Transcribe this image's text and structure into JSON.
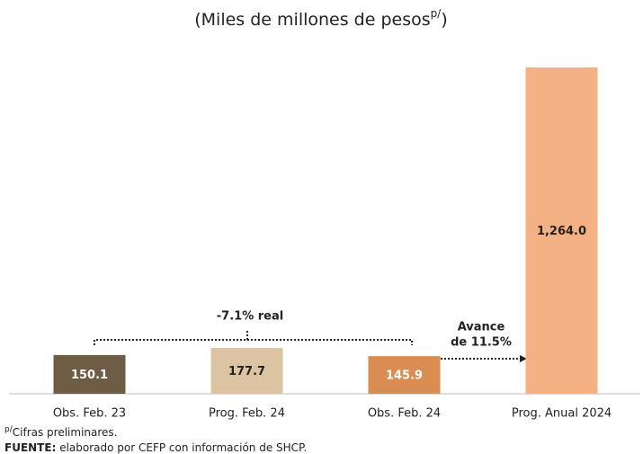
{
  "chart_data": {
    "type": "bar",
    "title": "(Miles de millones de pesos",
    "title_superscript": "p/",
    "title_end": ")",
    "categories": [
      "Obs. Feb. 23",
      "Prog. Feb. 24",
      "Obs. Feb. 24",
      "Prog. Anual 2024"
    ],
    "values": [
      150.1,
      177.7,
      145.9,
      1264.0
    ],
    "value_labels": [
      "150.1",
      "177.7",
      "145.9",
      "1,264.0"
    ],
    "colors": [
      "#6e5c45",
      "#dcc4a3",
      "#d98d52",
      "#f4b183"
    ],
    "label_colors": [
      "#ffffff",
      "#222222",
      "#ffffff",
      "#222222"
    ],
    "ylim": [
      0,
      1264
    ],
    "annotations": [
      "-7.1% real",
      "Avance",
      "de 11.5%"
    ],
    "footnote_superscript": "p/",
    "footnote": "Cifras preliminares.",
    "source_label": "FUENTE:",
    "source": " elaborado por CEFP con información de SHCP."
  }
}
